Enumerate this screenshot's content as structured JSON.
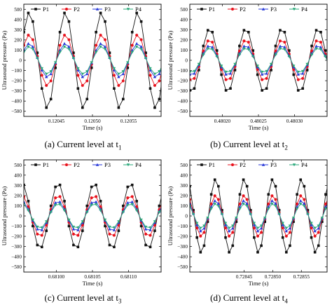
{
  "colors": {
    "P1": "#111111",
    "P2": "#e8121c",
    "P3": "#2436d8",
    "P4": "#2aa87a"
  },
  "chart_data": [
    {
      "type": "line",
      "caption": "(a) Current level at t",
      "caption_sub": "1",
      "xlabel": "Time (s)",
      "ylabel": "Ultrasound pressure (Pa)",
      "xlim": [
        0.120405,
        0.120595
      ],
      "ylim": [
        -550,
        550
      ],
      "xticks": [
        0.12045,
        0.1205,
        0.12055
      ],
      "xtick_labels": [
        "0.12045",
        "0.12050",
        "0.12055"
      ],
      "yticks": [
        -500,
        -400,
        -300,
        -200,
        -100,
        0,
        100,
        200,
        300,
        400,
        500
      ],
      "legend": "top",
      "period": 5e-05,
      "peak_x": 0.1204125,
      "n_points": 50,
      "series": [
        {
          "name": "P1",
          "amplitude": 470
        },
        {
          "name": "P2",
          "amplitude": 250
        },
        {
          "name": "P3",
          "amplitude": 165
        },
        {
          "name": "P4",
          "amplitude": 135
        }
      ]
    },
    {
      "type": "line",
      "caption": "(b) Current level at t",
      "caption_sub": "2",
      "xlabel": "Time (s)",
      "ylabel": "Ultrasound pressure (Pa)",
      "xlim": [
        0.480155,
        0.480345
      ],
      "ylim": [
        -550,
        550
      ],
      "xticks": [
        0.4802,
        0.48025,
        0.4803
      ],
      "xtick_labels": [
        "0.48020",
        "0.48025",
        "0.48030"
      ],
      "yticks": [
        -500,
        -400,
        -300,
        -200,
        -100,
        0,
        100,
        200,
        300,
        400,
        500
      ],
      "legend": "top",
      "period": 5e-05,
      "peak_x": 0.4801825,
      "n_points": 50,
      "series": [
        {
          "name": "P1",
          "amplitude": 310
        },
        {
          "name": "P2",
          "amplitude": 200
        },
        {
          "name": "P3",
          "amplitude": 145
        },
        {
          "name": "P4",
          "amplitude": 120
        }
      ]
    },
    {
      "type": "line",
      "caption": "(c) Current level at t",
      "caption_sub": "3",
      "xlabel": "Time (s)",
      "ylabel": "Ultrasound pressure (Pa)",
      "xlim": [
        0.680955,
        0.681145
      ],
      "ylim": [
        -550,
        550
      ],
      "xticks": [
        0.681,
        0.68105,
        0.6811
      ],
      "xtick_labels": [
        "0.68100",
        "0.68105",
        "0.68110"
      ],
      "yticks": [
        -500,
        -400,
        -300,
        -200,
        -100,
        0,
        100,
        200,
        300,
        400,
        500
      ],
      "legend": "top",
      "period": 5e-05,
      "peak_x": 0.6810025,
      "n_points": 50,
      "series": [
        {
          "name": "P1",
          "amplitude": 320
        },
        {
          "name": "P2",
          "amplitude": 200
        },
        {
          "name": "P3",
          "amplitude": 145
        },
        {
          "name": "P4",
          "amplitude": 120
        }
      ]
    },
    {
      "type": "line",
      "caption": "(d) Current level at t",
      "caption_sub": "4",
      "xlabel": "Time (s)",
      "ylabel": "Ultrasound pressure (Pa)",
      "xlim": [
        0.728355,
        0.728595
      ],
      "ylim": [
        -550,
        550
      ],
      "xticks": [
        0.72845,
        0.7285,
        0.72855
      ],
      "xtick_labels": [
        "0.72845",
        "0.72850",
        "0.72855"
      ],
      "yticks": [
        -500,
        -400,
        -300,
        -200,
        -100,
        0,
        100,
        200,
        300,
        400,
        500
      ],
      "legend": "top",
      "period": 5e-05,
      "peak_x": 0.7284,
      "n_points": 60,
      "series": [
        {
          "name": "P1",
          "amplitude": 360
        },
        {
          "name": "P2",
          "amplitude": 200
        },
        {
          "name": "P3",
          "amplitude": 150
        },
        {
          "name": "P4",
          "amplitude": 120
        }
      ]
    }
  ]
}
